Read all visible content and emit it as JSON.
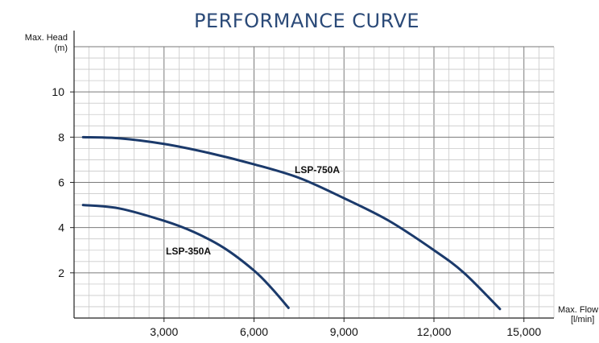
{
  "chart_data": {
    "type": "line",
    "title": "PERFORMANCE CURVE",
    "ylabel_line1": "Max. Head",
    "ylabel_line2": "(m)",
    "xlabel_line1": "Max. Flow",
    "xlabel_line2": "[l/min]",
    "xlim": [
      0,
      16000
    ],
    "ylim": [
      0,
      12
    ],
    "x_ticks": [
      3000,
      6000,
      9000,
      12000,
      15000
    ],
    "x_tick_labels": [
      "3,000",
      "6,000",
      "9,000",
      "12,000",
      "15,000"
    ],
    "y_ticks": [
      2,
      4,
      6,
      8,
      10
    ],
    "y_tick_labels": [
      "2",
      "4",
      "6",
      "8",
      "10"
    ],
    "grid": true,
    "series": [
      {
        "name": "LSP-750A",
        "color": "#1b3a6b",
        "x": [
          300,
          1500,
          3000,
          4500,
          6000,
          7500,
          9000,
          10500,
          12000,
          13000,
          14200
        ],
        "y": [
          8.0,
          7.95,
          7.7,
          7.3,
          6.8,
          6.2,
          5.3,
          4.3,
          3.0,
          2.0,
          0.4
        ]
      },
      {
        "name": "LSP-350A",
        "color": "#1b3a6b",
        "x": [
          300,
          1500,
          3000,
          4000,
          5000,
          6000,
          6600,
          7150
        ],
        "y": [
          5.0,
          4.85,
          4.3,
          3.8,
          3.1,
          2.1,
          1.3,
          0.45
        ]
      }
    ]
  }
}
